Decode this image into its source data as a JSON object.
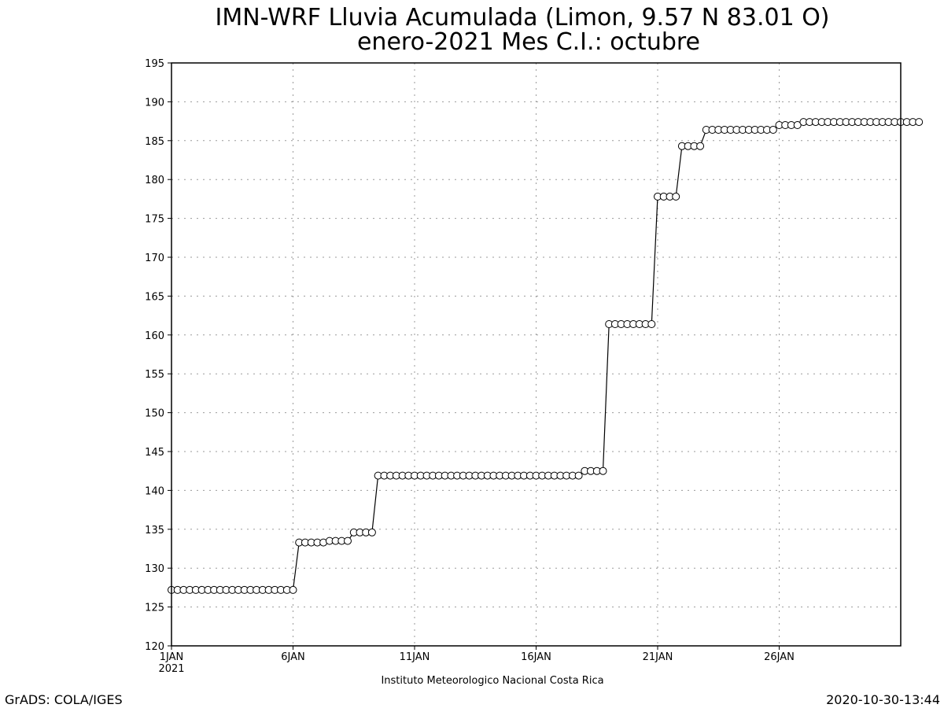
{
  "chart_data": {
    "type": "line",
    "title": "IMN-WRF  Lluvia Acumulada  (Limon, 9.57  N 83.01  O)",
    "subtitle": "enero-2021 Mes C.I.: octubre",
    "xlabel": "",
    "ylabel": "",
    "xlim": [
      1,
      31
    ],
    "ylim": [
      120,
      195
    ],
    "yticks": [
      120,
      125,
      130,
      135,
      140,
      145,
      150,
      155,
      160,
      165,
      170,
      175,
      180,
      185,
      190,
      195
    ],
    "xticks": [
      {
        "value": 1,
        "label": "1JAN",
        "sublabel": "2021"
      },
      {
        "value": 6,
        "label": "6JAN"
      },
      {
        "value": 11,
        "label": "11JAN"
      },
      {
        "value": 16,
        "label": "16JAN"
      },
      {
        "value": 21,
        "label": "21JAN"
      },
      {
        "value": 26,
        "label": "26JAN"
      }
    ],
    "grid": true,
    "line_color": "#000000",
    "marker": "open-circle",
    "series": [
      {
        "values_step_days": 0.25,
        "x_start_day": 1,
        "values": [
          127.2,
          127.2,
          127.2,
          127.2,
          127.2,
          127.2,
          127.2,
          127.2,
          127.2,
          127.2,
          127.2,
          127.2,
          127.2,
          127.2,
          127.2,
          127.2,
          127.2,
          127.2,
          127.2,
          127.2,
          127.2,
          133.3,
          133.3,
          133.3,
          133.3,
          133.3,
          133.5,
          133.5,
          133.5,
          133.5,
          134.6,
          134.6,
          134.6,
          134.6,
          141.9,
          141.9,
          141.9,
          141.9,
          141.9,
          141.9,
          141.9,
          141.9,
          141.9,
          141.9,
          141.9,
          141.9,
          141.9,
          141.9,
          141.9,
          141.9,
          141.9,
          141.9,
          141.9,
          141.9,
          141.9,
          141.9,
          141.9,
          141.9,
          141.9,
          141.9,
          141.9,
          141.9,
          141.9,
          141.9,
          141.9,
          141.9,
          141.9,
          141.9,
          142.5,
          142.5,
          142.5,
          142.5,
          161.4,
          161.4,
          161.4,
          161.4,
          161.4,
          161.4,
          161.4,
          161.4,
          177.8,
          177.8,
          177.8,
          177.8,
          184.3,
          184.3,
          184.3,
          184.3,
          186.4,
          186.4,
          186.4,
          186.4,
          186.4,
          186.4,
          186.4,
          186.4,
          186.4,
          186.4,
          186.4,
          186.4,
          187.0,
          187.0,
          187.0,
          187.0,
          187.4,
          187.4,
          187.4,
          187.4,
          187.4,
          187.4,
          187.4,
          187.4,
          187.4,
          187.4,
          187.4,
          187.4,
          187.4,
          187.4,
          187.4,
          187.4,
          187.4,
          187.4,
          187.4,
          187.4
        ]
      }
    ]
  },
  "footer": {
    "institution": "Instituto Meteorologico Nacional Costa Rica",
    "credit": "GrADS: COLA/IGES",
    "timestamp": "2020-10-30-13:44"
  }
}
